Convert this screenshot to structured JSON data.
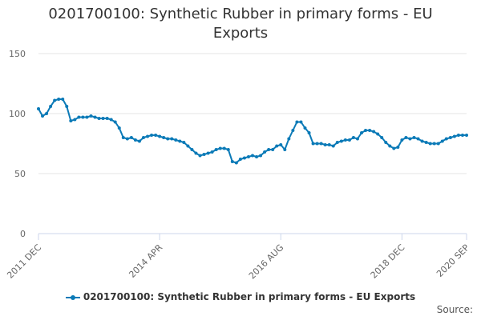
{
  "title": "0201700100: Synthetic Rubber in primary forms - EU Exports",
  "credits": "Source:",
  "colors": {
    "series": "#0b7ab7",
    "grid": "#e6e6e6",
    "axis": "#ccd6eb",
    "text": "#666666"
  },
  "chart_data": {
    "type": "line",
    "title": "0201700100: Synthetic Rubber in primary forms - EU Exports",
    "ylim": [
      0,
      150
    ],
    "yticks": [
      0,
      50,
      100,
      150
    ],
    "xticks": [
      "2011 DEC",
      "2014 APR",
      "2016 AUG",
      "2018 DEC",
      "2020 SEP"
    ],
    "grid": true,
    "legend_position": "bottom",
    "series": [
      {
        "name": "0201700100: Synthetic Rubber in primary forms - EU Exports",
        "values": [
          104,
          98,
          100,
          106,
          111,
          112,
          112,
          106,
          94,
          95,
          97,
          97,
          97,
          98,
          97,
          96,
          96,
          96,
          95,
          93,
          88,
          80,
          79,
          80,
          78,
          77,
          80,
          81,
          82,
          82,
          81,
          80,
          79,
          79,
          78,
          77,
          76,
          73,
          70,
          67,
          65,
          66,
          67,
          68,
          70,
          71,
          71,
          70,
          60,
          59,
          62,
          63,
          64,
          65,
          64,
          65,
          68,
          70,
          70,
          73,
          74,
          70,
          79,
          86,
          93,
          93,
          88,
          84,
          75,
          75,
          75,
          74,
          74,
          73,
          76,
          77,
          78,
          78,
          80,
          79,
          84,
          86,
          86,
          85,
          83,
          80,
          76,
          73,
          71,
          72,
          78,
          80,
          79,
          80,
          79,
          77,
          76,
          75,
          75,
          75,
          77,
          79,
          80,
          81,
          82,
          82,
          82
        ]
      }
    ]
  }
}
